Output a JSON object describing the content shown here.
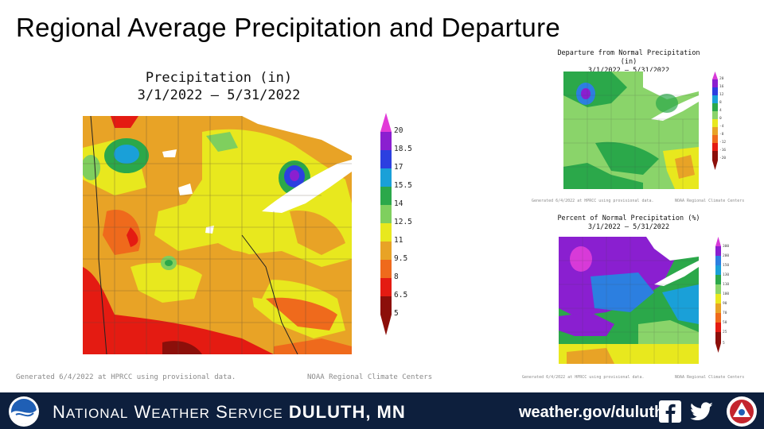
{
  "slide": {
    "title": "Regional Average Precipitation and Departure"
  },
  "main_map": {
    "title_line1": "Precipitation (in)",
    "title_line2": "3/1/2022 – 5/31/2022",
    "generated_note": "Generated 6/4/2022 at HPRCC using provisional data.",
    "source_note": "NOAA Regional Climate Centers",
    "legend": {
      "labels": [
        "20",
        "18.5",
        "17",
        "15.5",
        "14",
        "12.5",
        "11",
        "9.5",
        "8",
        "6.5",
        "5"
      ],
      "colors": [
        "#e23ad8",
        "#8a1fd0",
        "#2c3fe0",
        "#1aa0d8",
        "#2ba84a",
        "#7fcf5e",
        "#e8e81e",
        "#e8a326",
        "#ef6a1c",
        "#e41b12",
        "#8c0f0a"
      ]
    }
  },
  "departure_map": {
    "title_line1": "Departure from Normal Precipitation (in)",
    "title_line2": "3/1/2022 – 5/31/2022",
    "generated_note": "Generated 6/4/2022 at HPRCC using provisional data.",
    "source_note": "NOAA Regional Climate Centers",
    "legend": {
      "labels": [
        "20",
        "16",
        "12",
        "8",
        "4",
        "0",
        "-4",
        "-8",
        "-12",
        "-16",
        "-20"
      ],
      "colors": [
        "#d83ad8",
        "#8a1fd0",
        "#2c3fe0",
        "#1aa0d8",
        "#2ba84a",
        "#8ad46a",
        "#e8e81e",
        "#e8a326",
        "#ef6a1c",
        "#e41b12",
        "#8c0f0a"
      ]
    }
  },
  "percent_map": {
    "title_line1": "Percent of Normal Precipitation (%)",
    "title_line2": "3/1/2022 – 5/31/2022",
    "generated_note": "Generated 6/4/2022 at HPRCC using provisional data.",
    "source_note": "NOAA Regional Climate Centers",
    "legend": {
      "labels": [
        "300",
        "200",
        "150",
        "130",
        "110",
        "100",
        "90",
        "70",
        "50",
        "25",
        "5"
      ],
      "colors": [
        "#d83ad8",
        "#8a1fd0",
        "#2c7fe0",
        "#1aa0d8",
        "#2ba84a",
        "#8ad46a",
        "#e8e81e",
        "#e8a326",
        "#ef6a1c",
        "#e41b12",
        "#8c0f0a"
      ]
    }
  },
  "footer": {
    "org_n": "N",
    "org_ational": "ATIONAL",
    "org_w": "W",
    "org_eather": "EATHER",
    "org_s": "S",
    "org_ervice": "ERVICE",
    "office": "DULUTH, MN",
    "url": "weather.gov/duluth",
    "icons": [
      "noaa-logo",
      "facebook-icon",
      "twitter-icon",
      "nws-logo"
    ]
  }
}
